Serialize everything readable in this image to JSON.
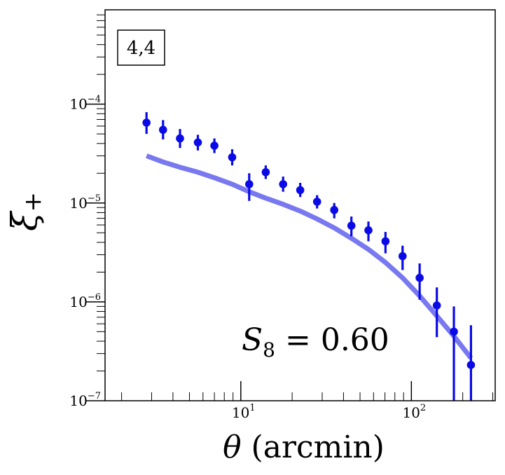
{
  "chart_data": {
    "type": "scatter",
    "title": "",
    "xlabel_symbol": "θ",
    "xlabel_unit": "(arcmin)",
    "ylabel_main": "ξ",
    "ylabel_sub": "+",
    "xscale": "log",
    "yscale": "log",
    "xlim": [
      1.6,
      310
    ],
    "ylim": [
      1e-07,
      0.0009
    ],
    "x_ticks": [
      {
        "value": 10,
        "base": "10",
        "exp": "1"
      },
      {
        "value": 100,
        "base": "10",
        "exp": "2"
      }
    ],
    "y_ticks": [
      {
        "value": 1e-07,
        "base": "10",
        "exp": "−7"
      },
      {
        "value": 1e-06,
        "base": "10",
        "exp": "−6"
      },
      {
        "value": 1e-05,
        "base": "10",
        "exp": "−5"
      },
      {
        "value": 0.0001,
        "base": "10",
        "exp": "−4"
      }
    ],
    "panel_label": "4,4",
    "annotation": {
      "symbol": "S",
      "sub": "8",
      "rest": " = 0.60"
    },
    "series": [
      {
        "kind": "errorbar",
        "color": "#0a0ae6",
        "points": [
          {
            "x": 2.8,
            "y": 6.5e-05,
            "lo": 5e-05,
            "hi": 8.3e-05
          },
          {
            "x": 3.5,
            "y": 5.5e-05,
            "lo": 4.4e-05,
            "hi": 6.9e-05
          },
          {
            "x": 4.4,
            "y": 4.5e-05,
            "lo": 3.6e-05,
            "hi": 5.6e-05
          },
          {
            "x": 5.6,
            "y": 4.1e-05,
            "lo": 3.4e-05,
            "hi": 4.9e-05
          },
          {
            "x": 7.0,
            "y": 3.8e-05,
            "lo": 3.2e-05,
            "hi": 4.5e-05
          },
          {
            "x": 8.9,
            "y": 2.9e-05,
            "lo": 2.4e-05,
            "hi": 3.5e-05
          },
          {
            "x": 11.2,
            "y": 1.55e-05,
            "lo": 1.05e-05,
            "hi": 2e-05
          },
          {
            "x": 14.0,
            "y": 2.05e-05,
            "lo": 1.75e-05,
            "hi": 2.4e-05
          },
          {
            "x": 17.7,
            "y": 1.55e-05,
            "lo": 1.3e-05,
            "hi": 1.85e-05
          },
          {
            "x": 22.3,
            "y": 1.35e-05,
            "lo": 1.15e-05,
            "hi": 1.6e-05
          },
          {
            "x": 28.0,
            "y": 1.03e-05,
            "lo": 8.8e-06,
            "hi": 1.2e-05
          },
          {
            "x": 35.3,
            "y": 8.5e-06,
            "lo": 7e-06,
            "hi": 1e-05
          },
          {
            "x": 44.5,
            "y": 5.9e-06,
            "lo": 4.6e-06,
            "hi": 7.3e-06
          },
          {
            "x": 56.0,
            "y": 5.3e-06,
            "lo": 4.1e-06,
            "hi": 6.5e-06
          },
          {
            "x": 70.5,
            "y": 4.1e-06,
            "lo": 3.1e-06,
            "hi": 5.1e-06
          },
          {
            "x": 88.8,
            "y": 2.9e-06,
            "lo": 2.1e-06,
            "hi": 3.7e-06
          },
          {
            "x": 111.8,
            "y": 1.75e-06,
            "lo": 1.05e-06,
            "hi": 2.45e-06
          },
          {
            "x": 141.0,
            "y": 9.2e-07,
            "lo": 4.4e-07,
            "hi": 1.4e-06
          },
          {
            "x": 177.5,
            "y": 5e-07,
            "lo": 1e-07,
            "hi": 9e-07
          },
          {
            "x": 223.5,
            "y": 2.3e-07,
            "lo": 1e-07,
            "hi": 5.8e-07
          }
        ]
      },
      {
        "kind": "line",
        "color": "#7878f0",
        "points": [
          {
            "x": 2.8,
            "y": 3e-05
          },
          {
            "x": 3.5,
            "y": 2.6e-05
          },
          {
            "x": 4.4,
            "y": 2.3e-05
          },
          {
            "x": 5.6,
            "y": 2.05e-05
          },
          {
            "x": 7.0,
            "y": 1.8e-05
          },
          {
            "x": 8.9,
            "y": 1.55e-05
          },
          {
            "x": 11.2,
            "y": 1.3e-05
          },
          {
            "x": 14.0,
            "y": 1.12e-05
          },
          {
            "x": 17.7,
            "y": 9.7e-06
          },
          {
            "x": 22.3,
            "y": 8.3e-06
          },
          {
            "x": 28.0,
            "y": 6.9e-06
          },
          {
            "x": 35.3,
            "y": 5.6e-06
          },
          {
            "x": 44.5,
            "y": 4.4e-06
          },
          {
            "x": 56.0,
            "y": 3.4e-06
          },
          {
            "x": 70.5,
            "y": 2.5e-06
          },
          {
            "x": 88.8,
            "y": 1.75e-06
          },
          {
            "x": 111.8,
            "y": 1.15e-06
          },
          {
            "x": 141.0,
            "y": 7.2e-07
          },
          {
            "x": 177.5,
            "y": 4.5e-07
          },
          {
            "x": 223.5,
            "y": 2.7e-07
          }
        ]
      }
    ]
  }
}
